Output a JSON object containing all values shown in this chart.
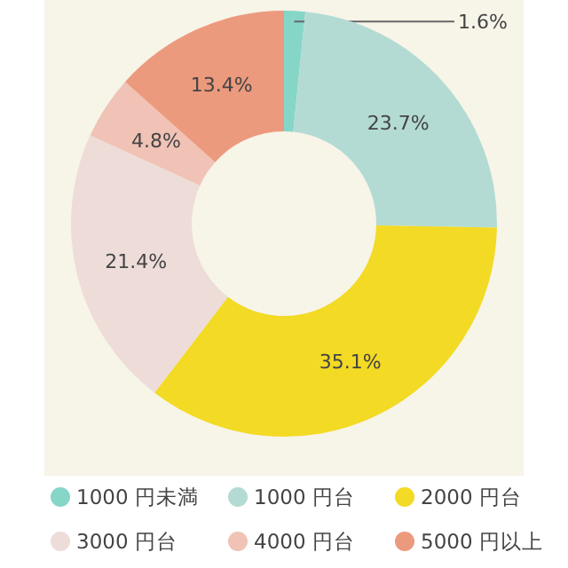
{
  "chart_data": {
    "type": "donut",
    "categories": [
      "1000 円未満",
      "1000 円台",
      "2000 円台",
      "3000 円台",
      "4000 円台",
      "5000 円以上"
    ],
    "values": [
      1.6,
      23.7,
      35.1,
      21.4,
      4.8,
      13.4
    ],
    "value_labels": [
      "1.6%",
      "23.7%",
      "35.1%",
      "21.4%",
      "4.8%",
      "13.4%"
    ],
    "colors": [
      "#86d6c8",
      "#b3dbd4",
      "#f3da24",
      "#eddcd8",
      "#f0c3b6",
      "#ec9a7e"
    ],
    "legend": "bottom"
  }
}
